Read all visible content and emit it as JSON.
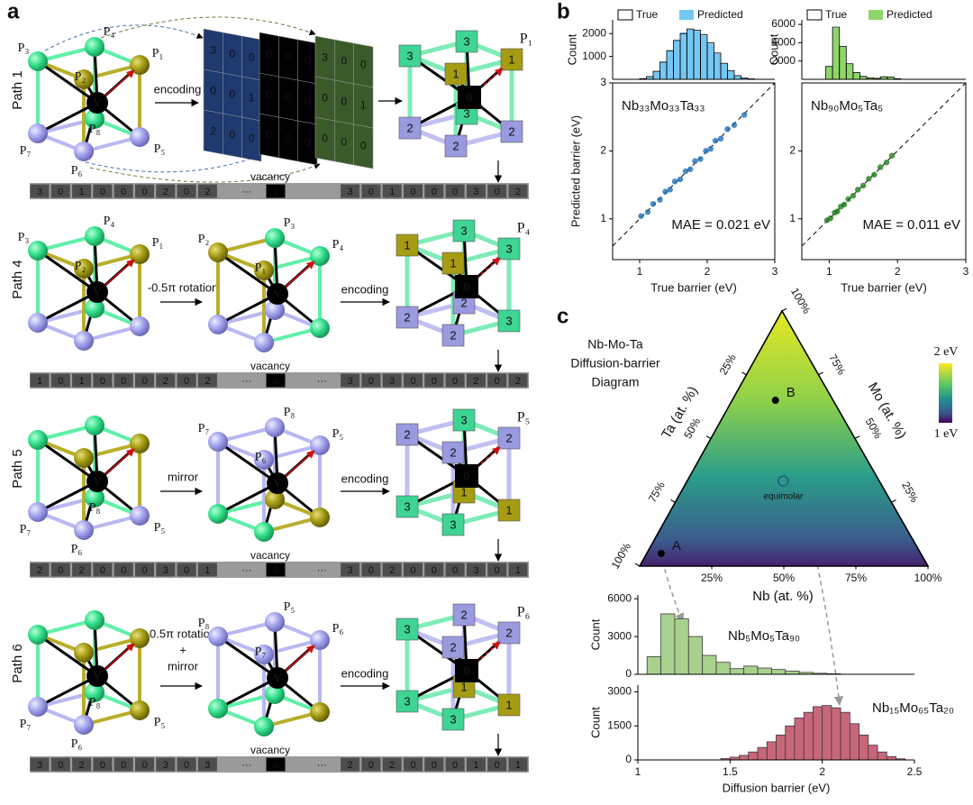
{
  "panel_labels": {
    "a": "a",
    "b": "b",
    "c": "c"
  },
  "panel_a": {
    "rows": [
      {
        "path": "Path 1",
        "cubes": [
          {
            "labels": [
              "P₃",
              "P₄",
              "P₁",
              "P₂",
              "P₇",
              "P₈",
              "P₅",
              "P₆"
            ],
            "center": "V"
          }
        ],
        "ops": [
          [
            "encoding"
          ]
        ],
        "matrices": [
          [
            "3",
            "0",
            "0",
            "0",
            "0",
            "1",
            "2",
            "0",
            "0"
          ],
          [
            "0",
            "0",
            "0",
            "0",
            "0",
            "0",
            "0",
            "0",
            "0"
          ],
          [
            "3",
            "0",
            "0",
            "0",
            "0",
            "1",
            "0",
            "0",
            "0"
          ]
        ],
        "encoded": {
          "corners": [
            "3",
            "3",
            "1",
            "1",
            "2",
            "3",
            "2",
            "2"
          ],
          "center": "0",
          "label": "P₁"
        },
        "vacancy": "vacancy",
        "strip": {
          "left": [
            "3",
            "0",
            "1",
            "0",
            "0",
            "0",
            "2",
            "0",
            "2",
            "···"
          ],
          "center": "0",
          "right": [
            "3",
            "0",
            "1",
            "0",
            "0",
            "0",
            "3",
            "0",
            "2"
          ]
        }
      },
      {
        "path": "Path 4",
        "cubes": [
          {
            "labels": [
              "P₃",
              "P₄",
              "P₁",
              "P₂",
              null,
              null,
              null,
              null
            ],
            "center": "V"
          },
          {
            "labels": [
              "P₂",
              "P₃",
              "P₄",
              "P₁",
              null,
              null,
              null,
              null
            ],
            "center": "V"
          }
        ],
        "ops": [
          [
            "-0.5π rotation"
          ],
          [
            "encoding"
          ]
        ],
        "encoded": {
          "corners": [
            "1",
            "3",
            "3",
            "1",
            "2",
            "2",
            "3",
            "2"
          ],
          "center": "0",
          "label": "P₄"
        },
        "vacancy": "vacancy",
        "strip": {
          "left": [
            "1",
            "0",
            "1",
            "0",
            "0",
            "0",
            "2",
            "0",
            "2",
            "···"
          ],
          "center": "0",
          "right": [
            "···",
            "3",
            "0",
            "3",
            "0",
            "0",
            "0",
            "2",
            "0",
            "2"
          ]
        }
      },
      {
        "path": "Path 5",
        "cubes": [
          {
            "labels": [
              null,
              null,
              null,
              null,
              "P₇",
              "P₈",
              "P₅",
              "P₆"
            ],
            "center": "V"
          },
          {
            "labels": [
              "P₇",
              "P₈",
              "P₅",
              "P₆",
              null,
              null,
              null,
              null
            ],
            "center": "V"
          }
        ],
        "ops": [
          [
            "mirror"
          ],
          [
            "encoding"
          ]
        ],
        "encoded": {
          "corners": [
            "2",
            "3",
            "2",
            "2",
            "3",
            "1",
            "1",
            "3"
          ],
          "center": "0",
          "label": "P₅"
        },
        "vacancy": "vacancy",
        "strip": {
          "left": [
            "2",
            "0",
            "2",
            "0",
            "0",
            "0",
            "3",
            "0",
            "1",
            "···"
          ],
          "center": "0",
          "right": [
            "···",
            "3",
            "0",
            "2",
            "0",
            "0",
            "0",
            "3",
            "0",
            "1"
          ]
        }
      },
      {
        "path": "Path 6",
        "cubes": [
          {
            "labels": [
              null,
              null,
              null,
              null,
              "P₇",
              "P₈",
              "P₅",
              "P₆"
            ],
            "center": "V"
          },
          {
            "labels": [
              "P₈",
              "P₅",
              "P₆",
              "P₇",
              null,
              null,
              null,
              null
            ],
            "center": "V"
          }
        ],
        "ops": [
          [
            "0.5π rotation",
            "+",
            "mirror"
          ],
          [
            "encoding"
          ]
        ],
        "encoded": {
          "corners": [
            "3",
            "2",
            "2",
            "2",
            "3",
            "1",
            "1",
            "3"
          ],
          "center": "0",
          "label": "P₆"
        },
        "vacancy": "vacancy",
        "strip": {
          "left": [
            "3",
            "0",
            "2",
            "0",
            "0",
            "0",
            "3",
            "0",
            "3",
            "···"
          ],
          "center": "0",
          "right": [
            "···",
            "2",
            "0",
            "2",
            "0",
            "0",
            "0",
            "1",
            "0",
            "1"
          ]
        }
      }
    ]
  },
  "chart_data": [
    {
      "type": "histogram",
      "ylabel": "Count",
      "bins": [
        1.0,
        1.1,
        1.2,
        1.3,
        1.4,
        1.5,
        1.6,
        1.7,
        1.8,
        1.9,
        2.0,
        2.1,
        2.2,
        2.3,
        2.4,
        2.5,
        2.6,
        2.7
      ],
      "series": [
        {
          "name": "True",
          "color": "#000000",
          "filled": false,
          "values": [
            30,
            120,
            350,
            750,
            1250,
            1700,
            2000,
            2200,
            2150,
            1950,
            1600,
            1150,
            700,
            380,
            160,
            60,
            20
          ]
        },
        {
          "name": "Predicted",
          "color": "#74c7f2",
          "filled": true,
          "values": [
            25,
            110,
            360,
            780,
            1280,
            1720,
            2050,
            2180,
            2120,
            1920,
            1560,
            1120,
            680,
            360,
            150,
            55,
            15
          ]
        }
      ],
      "xlim": [
        0.6,
        3
      ],
      "ylim": [
        0,
        2600
      ],
      "yticks": [
        1000,
        2000
      ],
      "legend": "top"
    },
    {
      "type": "scatter",
      "annotation": "Nb₃₃Mo₃₃Ta₃₃",
      "mae": "MAE = 0.021 eV",
      "xlabel": "True barrier (eV)",
      "ylabel": "Predicted barrier (eV)",
      "x": [
        1.02,
        1.12,
        1.2,
        1.3,
        1.38,
        1.45,
        1.52,
        1.6,
        1.68,
        1.75,
        1.82,
        1.9,
        1.98,
        2.05,
        2.12,
        2.2,
        2.3,
        2.4,
        2.55
      ],
      "y": [
        1.04,
        1.1,
        1.22,
        1.28,
        1.4,
        1.43,
        1.55,
        1.58,
        1.7,
        1.73,
        1.85,
        1.88,
        2.0,
        2.03,
        2.15,
        2.18,
        2.32,
        2.38,
        2.53
      ],
      "color": "#1f6fb4",
      "xlim": [
        0.6,
        3
      ],
      "ylim": [
        0.4,
        3
      ],
      "xticks": [
        1,
        2,
        3
      ],
      "yticks": [
        1,
        2,
        3
      ],
      "diagonal": true
    },
    {
      "type": "histogram",
      "ylabel": "Count",
      "bins": [
        0.95,
        1.05,
        1.15,
        1.25,
        1.35,
        1.45,
        1.55,
        1.65,
        1.75,
        1.85,
        1.95,
        2.05
      ],
      "series": [
        {
          "name": "True",
          "color": "#000000",
          "filled": false,
          "values": [
            1400,
            5700,
            3600,
            1700,
            750,
            320,
            160,
            110,
            280,
            240,
            70
          ]
        },
        {
          "name": "Predicted",
          "color": "#8fd66a",
          "filled": true,
          "values": [
            1450,
            5600,
            3550,
            1650,
            720,
            300,
            150,
            100,
            300,
            250,
            80
          ]
        }
      ],
      "xlim": [
        0.6,
        3
      ],
      "ylim": [
        0,
        6500
      ],
      "yticks": [
        2000,
        4000,
        6000
      ],
      "legend": "top"
    },
    {
      "type": "scatter",
      "annotation": "Nb₉₀Mo₅Ta₅",
      "mae": "MAE = 0.011 eV",
      "xlabel": "True barrier (eV)",
      "x": [
        0.97,
        1.02,
        1.08,
        1.12,
        1.17,
        1.22,
        1.28,
        1.35,
        1.42,
        1.5,
        1.58,
        1.66,
        1.75,
        1.84,
        1.92
      ],
      "y": [
        0.98,
        1.01,
        1.09,
        1.11,
        1.18,
        1.21,
        1.29,
        1.34,
        1.43,
        1.49,
        1.59,
        1.65,
        1.76,
        1.83,
        1.93
      ],
      "color": "#1c7a1c",
      "xlim": [
        0.6,
        3
      ],
      "ylim": [
        0.4,
        3
      ],
      "xticks": [
        1,
        2,
        3
      ],
      "yticks": [
        1,
        2
      ],
      "diagonal": true
    },
    {
      "type": "histogram",
      "annotation": "Nb₅Mo₅Ta₉₀",
      "ylabel": "Count",
      "bins": [
        1.05,
        1.125,
        1.2,
        1.275,
        1.35,
        1.425,
        1.5,
        1.575,
        1.65,
        1.725,
        1.8,
        1.875,
        1.95,
        2.025,
        2.1
      ],
      "values": [
        1400,
        4800,
        4400,
        3000,
        1500,
        950,
        450,
        650,
        500,
        380,
        250,
        150,
        80,
        40
      ],
      "color": "#a9d18e",
      "edgecolor": "#3a3a3a",
      "xlim": [
        1,
        2.5
      ],
      "ylim": [
        0,
        6300
      ],
      "yticks": [
        0,
        3000,
        6000
      ]
    },
    {
      "type": "histogram",
      "annotation": "Nb₁₅Mo₆₅Ta₂₀",
      "ylabel": "Count",
      "xlabel": "Diffusion barrier (eV)",
      "bins": [
        1.45,
        1.5,
        1.55,
        1.6,
        1.65,
        1.7,
        1.75,
        1.8,
        1.85,
        1.9,
        1.95,
        2.0,
        2.05,
        2.1,
        2.15,
        2.2,
        2.25,
        2.3,
        2.35,
        2.4,
        2.45
      ],
      "values": [
        60,
        120,
        200,
        350,
        550,
        800,
        1100,
        1500,
        1850,
        2100,
        2350,
        2400,
        2300,
        2100,
        1600,
        1100,
        650,
        350,
        150,
        50
      ],
      "color": "#c8677a",
      "edgecolor": "#3a3a3a",
      "xlim": [
        1,
        2.5
      ],
      "ylim": [
        0,
        3300
      ],
      "xticks": [
        1,
        1.5,
        2,
        2.5
      ],
      "yticks": [
        0,
        1500,
        3000
      ]
    }
  ],
  "ternary": {
    "title": [
      "Nb-Mo-Ta",
      "Diffusion-barrier",
      "Diagram"
    ],
    "colorbar": {
      "max_label": "2 eV",
      "min_label": "1 eV"
    },
    "ta_label": "Ta (at. %)",
    "mo_label": "Mo (at. %)",
    "nb_label": "Nb (at. %)",
    "ta_ticks": [
      {
        "value": 25,
        "label": "25%"
      },
      {
        "value": 50,
        "label": "50%"
      },
      {
        "value": 75,
        "label": "75%"
      },
      {
        "value": 100,
        "label": "100%"
      }
    ],
    "mo_ticks": [
      {
        "value": 25,
        "label": "25%"
      },
      {
        "value": 50,
        "label": "50%"
      },
      {
        "value": 75,
        "label": "75%"
      },
      {
        "value": 100,
        "label": "100%"
      }
    ],
    "nb_ticks": [
      {
        "value": 25,
        "label": "25%"
      },
      {
        "value": 50,
        "label": "50%"
      },
      {
        "value": 75,
        "label": "75%"
      },
      {
        "value": 100,
        "label": "100%"
      }
    ],
    "points": [
      {
        "label": "A",
        "Nb": 5,
        "Mo": 5,
        "Ta": 90
      },
      {
        "label": "B",
        "Nb": 15,
        "Mo": 65,
        "Ta": 20
      }
    ],
    "equimolar": {
      "label": "equimolar",
      "Nb": 33.3,
      "Mo": 33.3,
      "Ta": 33.3
    }
  }
}
